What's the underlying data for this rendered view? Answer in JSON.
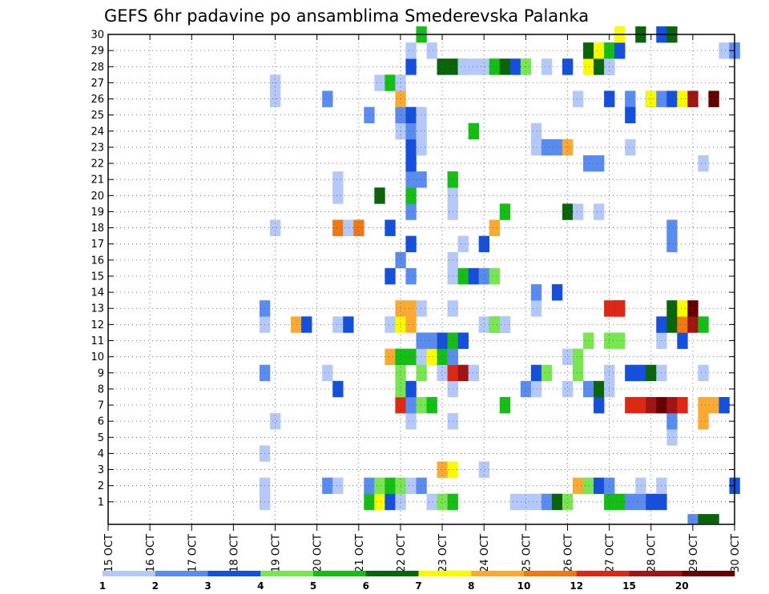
{
  "chart_data": {
    "type": "heatmap",
    "title": "GEFS 6hr padavine po ansamblima Smederevska Palanka",
    "x_tick_labels": [
      "15 OCT",
      "16 OCT",
      "17 OCT",
      "18 OCT",
      "19 OCT",
      "20 OCT",
      "21 OCT",
      "22 OCT",
      "23 OCT",
      "24 OCT",
      "25 OCT",
      "26 OCT",
      "27 OCT",
      "28 OCT",
      "29 OCT",
      "30 OCT"
    ],
    "y_tick_labels": [
      "1",
      "2",
      "3",
      "4",
      "5",
      "6",
      "7",
      "8",
      "9",
      "10",
      "11",
      "12",
      "13",
      "14",
      "15",
      "16",
      "17",
      "18",
      "19",
      "20",
      "21",
      "22",
      "23",
      "24",
      "25",
      "26",
      "27",
      "28",
      "29",
      "30"
    ],
    "y_range": [
      0,
      30
    ],
    "x_range": [
      0,
      60
    ],
    "time_step": "6hr",
    "grid": true,
    "legend": {
      "position": "bottom",
      "thresholds": [
        1,
        2,
        3,
        4,
        5,
        6,
        7,
        8,
        10,
        12,
        15,
        20
      ],
      "tick_labels": [
        "1",
        "2",
        "3",
        "4",
        "5",
        "6",
        "7",
        "8",
        "10",
        "12",
        "15",
        "20"
      ],
      "colors": [
        "#b4c8fa",
        "#5a8cf0",
        "#1450dc",
        "#78e650",
        "#14be14",
        "#0a640a",
        "#fafa00",
        "#faaa32",
        "#f07814",
        "#dc2814",
        "#a01414",
        "#640000"
      ]
    },
    "cells": [
      [
        15,
        1,
        0
      ],
      [
        15,
        2,
        0
      ],
      [
        15,
        4,
        0
      ],
      [
        15,
        9,
        1
      ],
      [
        15,
        12,
        0
      ],
      [
        15,
        13,
        1
      ],
      [
        16,
        6,
        0
      ],
      [
        16,
        18,
        0
      ],
      [
        16,
        26,
        0
      ],
      [
        16,
        27,
        0
      ],
      [
        18,
        12,
        7
      ],
      [
        19,
        12,
        2
      ],
      [
        21,
        2,
        1
      ],
      [
        21,
        9,
        0
      ],
      [
        21,
        26,
        1
      ],
      [
        22,
        2,
        0
      ],
      [
        22,
        8,
        2
      ],
      [
        22,
        12,
        0
      ],
      [
        22,
        18,
        0
      ],
      [
        22,
        18,
        8
      ],
      [
        22,
        20,
        0
      ],
      [
        22,
        21,
        0
      ],
      [
        23,
        18,
        0
      ],
      [
        23,
        12,
        2
      ],
      [
        24,
        18,
        0
      ],
      [
        24,
        18,
        8
      ],
      [
        25,
        1,
        4
      ],
      [
        25,
        2,
        1
      ],
      [
        25,
        25,
        1
      ],
      [
        26,
        1,
        1
      ],
      [
        26,
        1,
        6
      ],
      [
        26,
        2,
        3
      ],
      [
        26,
        20,
        5
      ],
      [
        26,
        27,
        0
      ],
      [
        27,
        1,
        2
      ],
      [
        27,
        2,
        4
      ],
      [
        27,
        10,
        7
      ],
      [
        27,
        12,
        0
      ],
      [
        27,
        15,
        2
      ],
      [
        27,
        27,
        4
      ],
      [
        27,
        18,
        2
      ],
      [
        28,
        1,
        0
      ],
      [
        28,
        2,
        3
      ],
      [
        28,
        7,
        9
      ],
      [
        28,
        8,
        3
      ],
      [
        28,
        9,
        3
      ],
      [
        28,
        10,
        4
      ],
      [
        28,
        12,
        6
      ],
      [
        28,
        13,
        7
      ],
      [
        28,
        16,
        1
      ],
      [
        28,
        24,
        0
      ],
      [
        28,
        25,
        1
      ],
      [
        28,
        26,
        7
      ],
      [
        28,
        27,
        0
      ],
      [
        29,
        2,
        0
      ],
      [
        29,
        6,
        0
      ],
      [
        29,
        7,
        1
      ],
      [
        29,
        8,
        2
      ],
      [
        29,
        10,
        4
      ],
      [
        29,
        12,
        7
      ],
      [
        29,
        13,
        7
      ],
      [
        29,
        15,
        1
      ],
      [
        29,
        17,
        2
      ],
      [
        29,
        19,
        1
      ],
      [
        29,
        20,
        4
      ],
      [
        29,
        21,
        1
      ],
      [
        29,
        22,
        2
      ],
      [
        29,
        23,
        2
      ],
      [
        29,
        24,
        1
      ],
      [
        29,
        25,
        2
      ],
      [
        29,
        28,
        2
      ],
      [
        29,
        29,
        0
      ],
      [
        30,
        2,
        1
      ],
      [
        30,
        7,
        3
      ],
      [
        30,
        9,
        3
      ],
      [
        30,
        10,
        0
      ],
      [
        30,
        11,
        1
      ],
      [
        30,
        13,
        0
      ],
      [
        30,
        21,
        1
      ],
      [
        30,
        23,
        0
      ],
      [
        30,
        24,
        0
      ],
      [
        30,
        25,
        0
      ],
      [
        30,
        30,
        4
      ],
      [
        31,
        1,
        0
      ],
      [
        31,
        7,
        4
      ],
      [
        31,
        10,
        6
      ],
      [
        31,
        11,
        1
      ],
      [
        31,
        29,
        0
      ],
      [
        32,
        1,
        3
      ],
      [
        32,
        3,
        7
      ],
      [
        32,
        9,
        0
      ],
      [
        32,
        10,
        4
      ],
      [
        32,
        11,
        2
      ],
      [
        32,
        28,
        5
      ],
      [
        33,
        1,
        4
      ],
      [
        33,
        3,
        6
      ],
      [
        33,
        6,
        0
      ],
      [
        33,
        8,
        0
      ],
      [
        33,
        9,
        9
      ],
      [
        33,
        10,
        1
      ],
      [
        33,
        11,
        4
      ],
      [
        33,
        13,
        0
      ],
      [
        33,
        16,
        0
      ],
      [
        33,
        15,
        0
      ],
      [
        33,
        19,
        0
      ],
      [
        33,
        20,
        0
      ],
      [
        33,
        21,
        4
      ],
      [
        33,
        28,
        5
      ],
      [
        34,
        9,
        10
      ],
      [
        34,
        11,
        2
      ],
      [
        34,
        15,
        4
      ],
      [
        34,
        17,
        0
      ],
      [
        34,
        28,
        4
      ],
      [
        34,
        28,
        0
      ],
      [
        35,
        9,
        0
      ],
      [
        35,
        15,
        2
      ],
      [
        35,
        24,
        4
      ],
      [
        35,
        28,
        0
      ],
      [
        36,
        3,
        0
      ],
      [
        36,
        12,
        0
      ],
      [
        36,
        15,
        1
      ],
      [
        36,
        17,
        2
      ],
      [
        36,
        28,
        0
      ],
      [
        37,
        12,
        1
      ],
      [
        37,
        15,
        3
      ],
      [
        37,
        12,
        3
      ],
      [
        37,
        18,
        7
      ],
      [
        37,
        28,
        4
      ],
      [
        38,
        7,
        4
      ],
      [
        38,
        12,
        4
      ],
      [
        38,
        12,
        0
      ],
      [
        38,
        28,
        5
      ],
      [
        38,
        19,
        4
      ],
      [
        39,
        1,
        0
      ],
      [
        39,
        28,
        2
      ],
      [
        40,
        1,
        0
      ],
      [
        40,
        8,
        1
      ],
      [
        40,
        28,
        3
      ],
      [
        41,
        1,
        0
      ],
      [
        41,
        8,
        0
      ],
      [
        41,
        9,
        2
      ],
      [
        41,
        13,
        0
      ],
      [
        41,
        14,
        1
      ],
      [
        41,
        23,
        0
      ],
      [
        41,
        24,
        0
      ],
      [
        42,
        1,
        1
      ],
      [
        42,
        9,
        3
      ],
      [
        42,
        23,
        1
      ],
      [
        42,
        28,
        0
      ],
      [
        43,
        1,
        5
      ],
      [
        43,
        14,
        2
      ],
      [
        43,
        23,
        1
      ],
      [
        44,
        1,
        3
      ],
      [
        44,
        8,
        0
      ],
      [
        44,
        10,
        0
      ],
      [
        44,
        19,
        5
      ],
      [
        44,
        23,
        7
      ],
      [
        44,
        28,
        2
      ],
      [
        45,
        2,
        7
      ],
      [
        45,
        9,
        3
      ],
      [
        45,
        10,
        3
      ],
      [
        45,
        26,
        0
      ],
      [
        45,
        19,
        0
      ],
      [
        46,
        2,
        3
      ],
      [
        46,
        8,
        1
      ],
      [
        46,
        11,
        3
      ],
      [
        46,
        22,
        1
      ],
      [
        46,
        28,
        6
      ],
      [
        46,
        29,
        5
      ],
      [
        47,
        2,
        2
      ],
      [
        47,
        7,
        2
      ],
      [
        47,
        8,
        5
      ],
      [
        47,
        19,
        0
      ],
      [
        47,
        22,
        1
      ],
      [
        47,
        28,
        5
      ],
      [
        47,
        29,
        6
      ],
      [
        48,
        1,
        4
      ],
      [
        48,
        2,
        1
      ],
      [
        48,
        8,
        0
      ],
      [
        48,
        9,
        0
      ],
      [
        48,
        11,
        3
      ],
      [
        48,
        13,
        9
      ],
      [
        48,
        26,
        2
      ],
      [
        48,
        28,
        2
      ],
      [
        48,
        29,
        4
      ],
      [
        48,
        28,
        0
      ],
      [
        49,
        1,
        4
      ],
      [
        49,
        11,
        3
      ],
      [
        49,
        13,
        11
      ],
      [
        49,
        13,
        9
      ],
      [
        49,
        29,
        2
      ],
      [
        49,
        30,
        6
      ],
      [
        50,
        1,
        1
      ],
      [
        50,
        9,
        2
      ],
      [
        50,
        7,
        9
      ],
      [
        50,
        26,
        1
      ],
      [
        50,
        25,
        2
      ],
      [
        50,
        23,
        0
      ],
      [
        51,
        1,
        1
      ],
      [
        51,
        2,
        0
      ],
      [
        51,
        7,
        9
      ],
      [
        51,
        9,
        2
      ],
      [
        51,
        30,
        5
      ],
      [
        52,
        1,
        2
      ],
      [
        52,
        7,
        10
      ],
      [
        52,
        9,
        5
      ],
      [
        52,
        26,
        2
      ],
      [
        52,
        26,
        6
      ],
      [
        53,
        1,
        2
      ],
      [
        53,
        2,
        0
      ],
      [
        53,
        7,
        11
      ],
      [
        53,
        9,
        0
      ],
      [
        53,
        11,
        0
      ],
      [
        53,
        12,
        2
      ],
      [
        53,
        26,
        1
      ],
      [
        53,
        30,
        2
      ],
      [
        54,
        5,
        0
      ],
      [
        54,
        6,
        1
      ],
      [
        54,
        7,
        10
      ],
      [
        54,
        12,
        5
      ],
      [
        54,
        13,
        5
      ],
      [
        54,
        17,
        1
      ],
      [
        54,
        18,
        1
      ],
      [
        54,
        26,
        2
      ],
      [
        54,
        30,
        5
      ],
      [
        55,
        7,
        9
      ],
      [
        55,
        11,
        2
      ],
      [
        55,
        12,
        8
      ],
      [
        55,
        13,
        6
      ],
      [
        55,
        26,
        6
      ],
      [
        56,
        12,
        10
      ],
      [
        56,
        13,
        11
      ],
      [
        56,
        26,
        10
      ],
      [
        57,
        7,
        7
      ],
      [
        57,
        12,
        4
      ],
      [
        57,
        9,
        0
      ],
      [
        57,
        22,
        0
      ],
      [
        57,
        6,
        7
      ],
      [
        58,
        7,
        7
      ],
      [
        58,
        26,
        11
      ],
      [
        59,
        7,
        2
      ],
      [
        59,
        29,
        0
      ],
      [
        60,
        2,
        2
      ],
      [
        60,
        29,
        1
      ]
    ],
    "bottom_row": [
      [
        56,
        1
      ],
      [
        57,
        5
      ],
      [
        58,
        5
      ]
    ]
  }
}
